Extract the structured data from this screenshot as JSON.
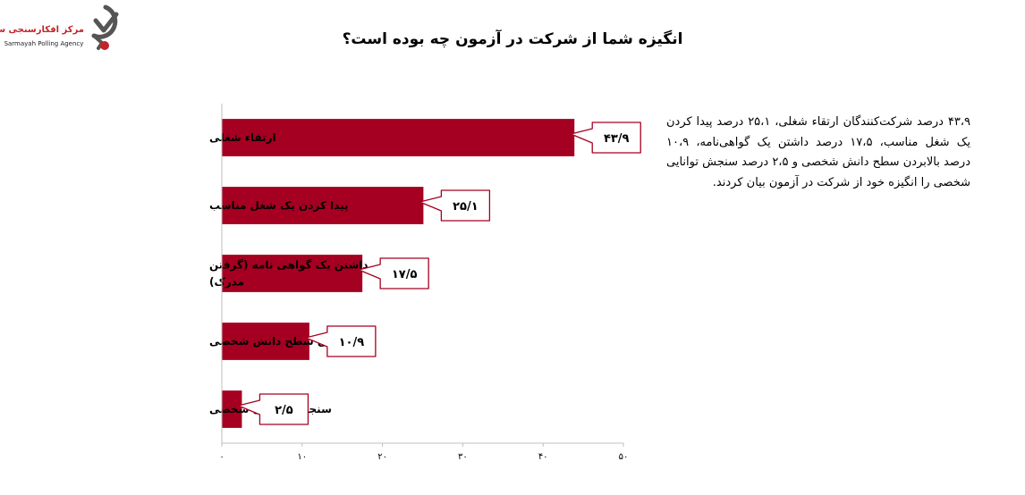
{
  "title": "انگیزه شما از شرکت در آزمون چه بوده است؟",
  "logo": {
    "name_fa": "مرکز افکارسنجی سرمایه",
    "name_en": "Sarmayah Polling Agency"
  },
  "summary": "۴۳،۹ درصد شرکت‌کنندگان ارتقاء شغلی، ۲۵،۱ درصد پیدا کردن یک شغل مناسب، ۱۷،۵ درصد داشتن یک گواهی‌نامه، ۱۰،۹ درصد بالابردن سطح دانش شخصی و ۲،۵ درصد سنجش توانایی شخصی را انگیزه خود از شرکت در آزمون بیان کردند.",
  "colors": {
    "bar": "#a50021",
    "label_border": "#a50021",
    "logo_red": "#c0252b"
  },
  "chart_data": {
    "type": "bar",
    "orientation": "horizontal",
    "categories": [
      [
        "ارتقاء شغلی"
      ],
      [
        "پیدا کردن یک شغل مناسب"
      ],
      [
        "داشتن یک گواهی نامه (گرفتن",
        "مدرک)"
      ],
      [
        "بالا بردن سطح دانش شخصی"
      ],
      [
        "سنجش توانایی شخصی"
      ]
    ],
    "values": [
      43.9,
      25.1,
      17.5,
      10.9,
      2.5
    ],
    "data_labels": [
      "۴۳/۹",
      "۲۵/۱",
      "۱۷/۵",
      "۱۰/۹",
      "۲/۵"
    ],
    "xlim": [
      0,
      50
    ],
    "xticks": [
      0,
      10,
      20,
      30,
      40,
      50
    ],
    "xtick_labels": [
      "۰",
      "۱۰",
      "۲۰",
      "۳۰",
      "۴۰",
      "۵۰"
    ],
    "grid": false,
    "legend": "none"
  }
}
